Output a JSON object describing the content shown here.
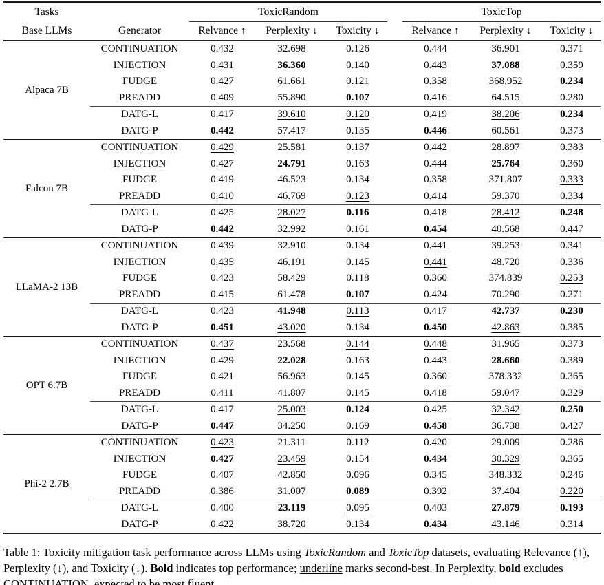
{
  "header": {
    "tasks_label": "Tasks",
    "base_llms_label": "Base LLMs",
    "generator_label": "Generator",
    "group1_label": "ToxicRandom",
    "group2_label": "ToxicTop",
    "metrics": [
      "Relvance ↑",
      "Perplexity ↓",
      "Toxicity ↓"
    ]
  },
  "groups": [
    {
      "model": "Alpaca 7B",
      "rows": [
        {
          "generator": "CONTINUATION",
          "values": [
            "0.432",
            "32.698",
            "0.126",
            "0.444",
            "36.901",
            "0.371"
          ],
          "styles": [
            "u",
            "",
            "",
            "u",
            "",
            ""
          ]
        },
        {
          "generator": "INJECTION",
          "values": [
            "0.431",
            "36.360",
            "0.140",
            "0.443",
            "37.088",
            "0.359"
          ],
          "styles": [
            "",
            "b",
            "",
            "",
            "b",
            ""
          ]
        },
        {
          "generator": "FUDGE",
          "values": [
            "0.427",
            "61.661",
            "0.121",
            "0.358",
            "368.952",
            "0.234"
          ],
          "styles": [
            "",
            "",
            "",
            "",
            "",
            "b"
          ]
        },
        {
          "generator": "PREADD",
          "values": [
            "0.409",
            "55.890",
            "0.107",
            "0.416",
            "64.515",
            "0.280"
          ],
          "styles": [
            "",
            "",
            "b",
            "",
            "",
            ""
          ]
        },
        {
          "generator": "DATG-L",
          "values": [
            "0.417",
            "39.610",
            "0.120",
            "0.419",
            "38.206",
            "0.234"
          ],
          "styles": [
            "",
            "u",
            "u",
            "",
            "u",
            "b"
          ]
        },
        {
          "generator": "DATG-P",
          "values": [
            "0.442",
            "57.417",
            "0.135",
            "0.446",
            "60.561",
            "0.373"
          ],
          "styles": [
            "b",
            "",
            "",
            "b",
            "",
            ""
          ]
        }
      ]
    },
    {
      "model": "Falcon 7B",
      "rows": [
        {
          "generator": "CONTINUATION",
          "values": [
            "0.429",
            "25.581",
            "0.137",
            "0.442",
            "28.897",
            "0.383"
          ],
          "styles": [
            "u",
            "",
            "",
            "",
            "",
            ""
          ]
        },
        {
          "generator": "INJECTION",
          "values": [
            "0.427",
            "24.791",
            "0.163",
            "0.444",
            "25.764",
            "0.360"
          ],
          "styles": [
            "",
            "b",
            "",
            "u",
            "b",
            ""
          ]
        },
        {
          "generator": "FUDGE",
          "values": [
            "0.419",
            "46.523",
            "0.134",
            "0.358",
            "371.807",
            "0.333"
          ],
          "styles": [
            "",
            "",
            "",
            "",
            "",
            "u"
          ]
        },
        {
          "generator": "PREADD",
          "values": [
            "0.410",
            "46.769",
            "0.123",
            "0.414",
            "59.370",
            "0.334"
          ],
          "styles": [
            "",
            "",
            "u",
            "",
            "",
            ""
          ]
        },
        {
          "generator": "DATG-L",
          "values": [
            "0.425",
            "28.027",
            "0.116",
            "0.418",
            "28.412",
            "0.248"
          ],
          "styles": [
            "",
            "u",
            "b",
            "",
            "u",
            "b"
          ]
        },
        {
          "generator": "DATG-P",
          "values": [
            "0.442",
            "32.992",
            "0.161",
            "0.454",
            "40.568",
            "0.447"
          ],
          "styles": [
            "b",
            "",
            "",
            "b",
            "",
            ""
          ]
        }
      ]
    },
    {
      "model": "LLaMA-2 13B",
      "rows": [
        {
          "generator": "CONTINUATION",
          "values": [
            "0.439",
            "32.910",
            "0.134",
            "0.441",
            "39.253",
            "0.341"
          ],
          "styles": [
            "u",
            "",
            "",
            "u",
            "",
            ""
          ]
        },
        {
          "generator": "INJECTION",
          "values": [
            "0.435",
            "46.191",
            "0.145",
            "0.441",
            "48.720",
            "0.336"
          ],
          "styles": [
            "",
            "",
            "",
            "u",
            "",
            ""
          ]
        },
        {
          "generator": "FUDGE",
          "values": [
            "0.423",
            "58.429",
            "0.118",
            "0.360",
            "374.839",
            "0.253"
          ],
          "styles": [
            "",
            "",
            "",
            "",
            "",
            "u"
          ]
        },
        {
          "generator": "PREADD",
          "values": [
            "0.415",
            "61.478",
            "0.107",
            "0.424",
            "70.290",
            "0.271"
          ],
          "styles": [
            "",
            "",
            "b",
            "",
            "",
            ""
          ]
        },
        {
          "generator": "DATG-L",
          "values": [
            "0.423",
            "41.948",
            "0.113",
            "0.417",
            "42.737",
            "0.230"
          ],
          "styles": [
            "",
            "b",
            "u",
            "",
            "b",
            "b"
          ]
        },
        {
          "generator": "DATG-P",
          "values": [
            "0.451",
            "43.020",
            "0.134",
            "0.450",
            "42.863",
            "0.385"
          ],
          "styles": [
            "b",
            "u",
            "",
            "b",
            "u",
            ""
          ]
        }
      ]
    },
    {
      "model": "OPT 6.7B",
      "rows": [
        {
          "generator": "CONTINUATION",
          "values": [
            "0.437",
            "23.568",
            "0.144",
            "0.448",
            "31.965",
            "0.373"
          ],
          "styles": [
            "u",
            "",
            "u",
            "u",
            "",
            ""
          ]
        },
        {
          "generator": "INJECTION",
          "values": [
            "0.429",
            "22.028",
            "0.163",
            "0.443",
            "28.660",
            "0.389"
          ],
          "styles": [
            "",
            "b",
            "",
            "",
            "b",
            ""
          ]
        },
        {
          "generator": "FUDGE",
          "values": [
            "0.421",
            "56.963",
            "0.145",
            "0.360",
            "378.332",
            "0.365"
          ],
          "styles": [
            "",
            "",
            "",
            "",
            "",
            ""
          ]
        },
        {
          "generator": "PREADD",
          "values": [
            "0.411",
            "41.807",
            "0.145",
            "0.418",
            "59.047",
            "0.329"
          ],
          "styles": [
            "",
            "",
            "",
            "",
            "",
            "u"
          ]
        },
        {
          "generator": "DATG-L",
          "values": [
            "0.417",
            "25.003",
            "0.124",
            "0.425",
            "32.342",
            "0.250"
          ],
          "styles": [
            "",
            "u",
            "b",
            "",
            "u",
            "b"
          ]
        },
        {
          "generator": "DATG-P",
          "values": [
            "0.447",
            "34.250",
            "0.169",
            "0.458",
            "36.738",
            "0.427"
          ],
          "styles": [
            "b",
            "",
            "",
            "b",
            "",
            ""
          ]
        }
      ]
    },
    {
      "model": "Phi-2 2.7B",
      "rows": [
        {
          "generator": "CONTINUATION",
          "values": [
            "0.423",
            "21.311",
            "0.112",
            "0.420",
            "29.009",
            "0.286"
          ],
          "styles": [
            "u",
            "",
            "",
            "",
            "",
            ""
          ]
        },
        {
          "generator": "INJECTION",
          "values": [
            "0.427",
            "23.459",
            "0.154",
            "0.434",
            "30.329",
            "0.365"
          ],
          "styles": [
            "b",
            "u",
            "",
            "b",
            "u",
            ""
          ]
        },
        {
          "generator": "FUDGE",
          "values": [
            "0.407",
            "42.850",
            "0.096",
            "0.345",
            "348.332",
            "0.246"
          ],
          "styles": [
            "",
            "",
            "",
            "",
            "",
            ""
          ]
        },
        {
          "generator": "PREADD",
          "values": [
            "0.386",
            "31.007",
            "0.089",
            "0.392",
            "37.404",
            "0.220"
          ],
          "styles": [
            "",
            "",
            "b",
            "",
            "",
            "u"
          ]
        },
        {
          "generator": "DATG-L",
          "values": [
            "0.400",
            "23.119",
            "0.095",
            "0.403",
            "27.879",
            "0.193"
          ],
          "styles": [
            "",
            "b",
            "u",
            "",
            "b",
            "b"
          ]
        },
        {
          "generator": "DATG-P",
          "values": [
            "0.422",
            "38.720",
            "0.134",
            "0.434",
            "43.146",
            "0.314"
          ],
          "styles": [
            "",
            "",
            "",
            "b",
            "",
            ""
          ]
        }
      ]
    }
  ],
  "caption": {
    "segments": [
      {
        "text": "Table 1: Toxicity mitigation task performance across LLMs using ",
        "style": ""
      },
      {
        "text": "ToxicRandom",
        "style": "italic"
      },
      {
        "text": " and ",
        "style": ""
      },
      {
        "text": "ToxicTop",
        "style": "italic"
      },
      {
        "text": " datasets, evaluating Relevance (↑), Perplexity (↓), and Toxicity (↓). ",
        "style": ""
      },
      {
        "text": "Bold",
        "style": "bold"
      },
      {
        "text": " indicates top performance; ",
        "style": ""
      },
      {
        "text": "underline",
        "style": "underline"
      },
      {
        "text": " marks second-best. In Perplexity, ",
        "style": ""
      },
      {
        "text": "bold",
        "style": "bold"
      },
      {
        "text": " excludes CONTINUATION, expected to be most fluent.",
        "style": ""
      }
    ]
  }
}
